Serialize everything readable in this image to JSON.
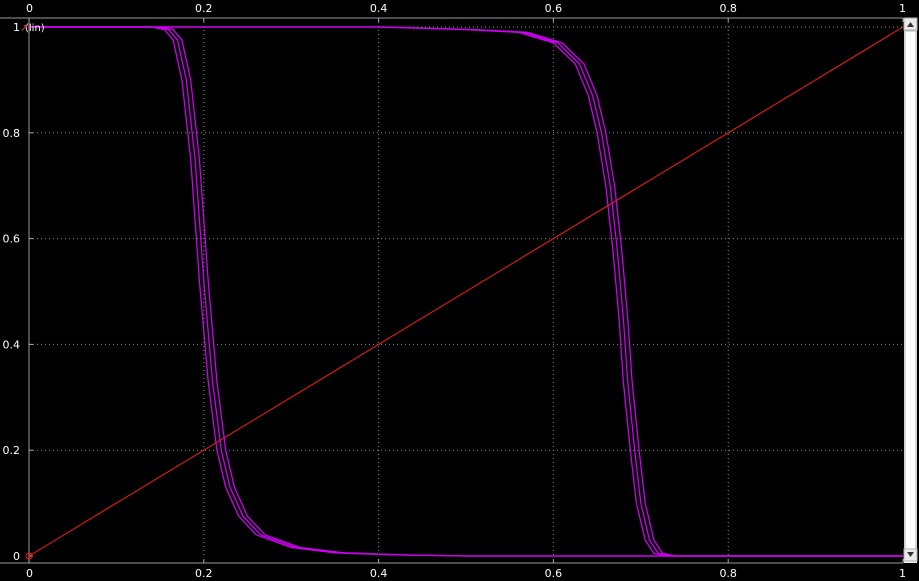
{
  "chart_data": {
    "type": "line",
    "title": "",
    "xlabel": "",
    "ylabel": "",
    "y_unit": "(lin)",
    "xlim": [
      0,
      1
    ],
    "ylim": [
      0,
      1
    ],
    "grid": true,
    "x_ticks": [
      "0",
      "0.2",
      "0.4",
      "0.6",
      "0.8",
      "1"
    ],
    "y_ticks": [
      "0",
      "0.2",
      "0.4",
      "0.6",
      "0.8",
      "1"
    ],
    "colors": {
      "background": "#000000",
      "reference_line": "#ff1a1a",
      "curves": "#cc00ee",
      "grid": "#8a8a8a"
    },
    "reference_line": {
      "x": [
        0,
        1
      ],
      "y": [
        0,
        1
      ]
    },
    "series": [
      {
        "group": "left-transition",
        "x": [
          0,
          0.14,
          0.155,
          0.165,
          0.175,
          0.185,
          0.195,
          0.205,
          0.215,
          0.225,
          0.24,
          0.26,
          0.3,
          0.35,
          0.42,
          0.5,
          1.0
        ],
        "y": [
          1,
          1,
          0.995,
          0.975,
          0.9,
          0.75,
          0.52,
          0.33,
          0.2,
          0.13,
          0.075,
          0.04,
          0.016,
          0.006,
          0.002,
          0.0,
          0.0
        ]
      },
      {
        "group": "left-transition",
        "x": [
          0,
          0.145,
          0.16,
          0.17,
          0.18,
          0.19,
          0.2,
          0.21,
          0.22,
          0.23,
          0.245,
          0.265,
          0.305,
          0.355,
          0.425,
          0.5,
          1.0
        ],
        "y": [
          1,
          1,
          0.995,
          0.975,
          0.9,
          0.75,
          0.52,
          0.33,
          0.2,
          0.13,
          0.075,
          0.04,
          0.016,
          0.006,
          0.002,
          0.0,
          0.0
        ]
      },
      {
        "group": "left-transition",
        "x": [
          0,
          0.15,
          0.165,
          0.175,
          0.185,
          0.195,
          0.205,
          0.215,
          0.225,
          0.235,
          0.25,
          0.27,
          0.31,
          0.36,
          0.43,
          0.5,
          1.0
        ],
        "y": [
          1,
          1,
          0.995,
          0.975,
          0.9,
          0.75,
          0.52,
          0.33,
          0.2,
          0.13,
          0.075,
          0.04,
          0.016,
          0.006,
          0.002,
          0.0,
          0.0
        ]
      },
      {
        "group": "right-transition",
        "x": [
          0,
          0.4,
          0.5,
          0.56,
          0.6,
          0.625,
          0.64,
          0.65,
          0.66,
          0.668,
          0.675,
          0.68,
          0.688,
          0.695,
          0.705,
          0.715,
          0.73,
          1.0
        ],
        "y": [
          1,
          1,
          0.995,
          0.99,
          0.97,
          0.93,
          0.87,
          0.8,
          0.7,
          0.58,
          0.45,
          0.33,
          0.2,
          0.1,
          0.03,
          0.005,
          0.0,
          0.0
        ]
      },
      {
        "group": "right-transition",
        "x": [
          0,
          0.405,
          0.505,
          0.565,
          0.605,
          0.63,
          0.645,
          0.655,
          0.665,
          0.673,
          0.68,
          0.685,
          0.693,
          0.7,
          0.71,
          0.72,
          0.735,
          1.0
        ],
        "y": [
          1,
          1,
          0.995,
          0.99,
          0.97,
          0.93,
          0.87,
          0.8,
          0.7,
          0.58,
          0.45,
          0.33,
          0.2,
          0.1,
          0.03,
          0.005,
          0.0,
          0.0
        ]
      },
      {
        "group": "right-transition",
        "x": [
          0,
          0.41,
          0.51,
          0.57,
          0.61,
          0.635,
          0.65,
          0.66,
          0.67,
          0.678,
          0.685,
          0.69,
          0.698,
          0.705,
          0.715,
          0.725,
          0.74,
          1.0
        ],
        "y": [
          1,
          1,
          0.995,
          0.99,
          0.97,
          0.93,
          0.87,
          0.8,
          0.7,
          0.58,
          0.45,
          0.33,
          0.2,
          0.1,
          0.03,
          0.005,
          0.0,
          0.0
        ]
      }
    ]
  }
}
